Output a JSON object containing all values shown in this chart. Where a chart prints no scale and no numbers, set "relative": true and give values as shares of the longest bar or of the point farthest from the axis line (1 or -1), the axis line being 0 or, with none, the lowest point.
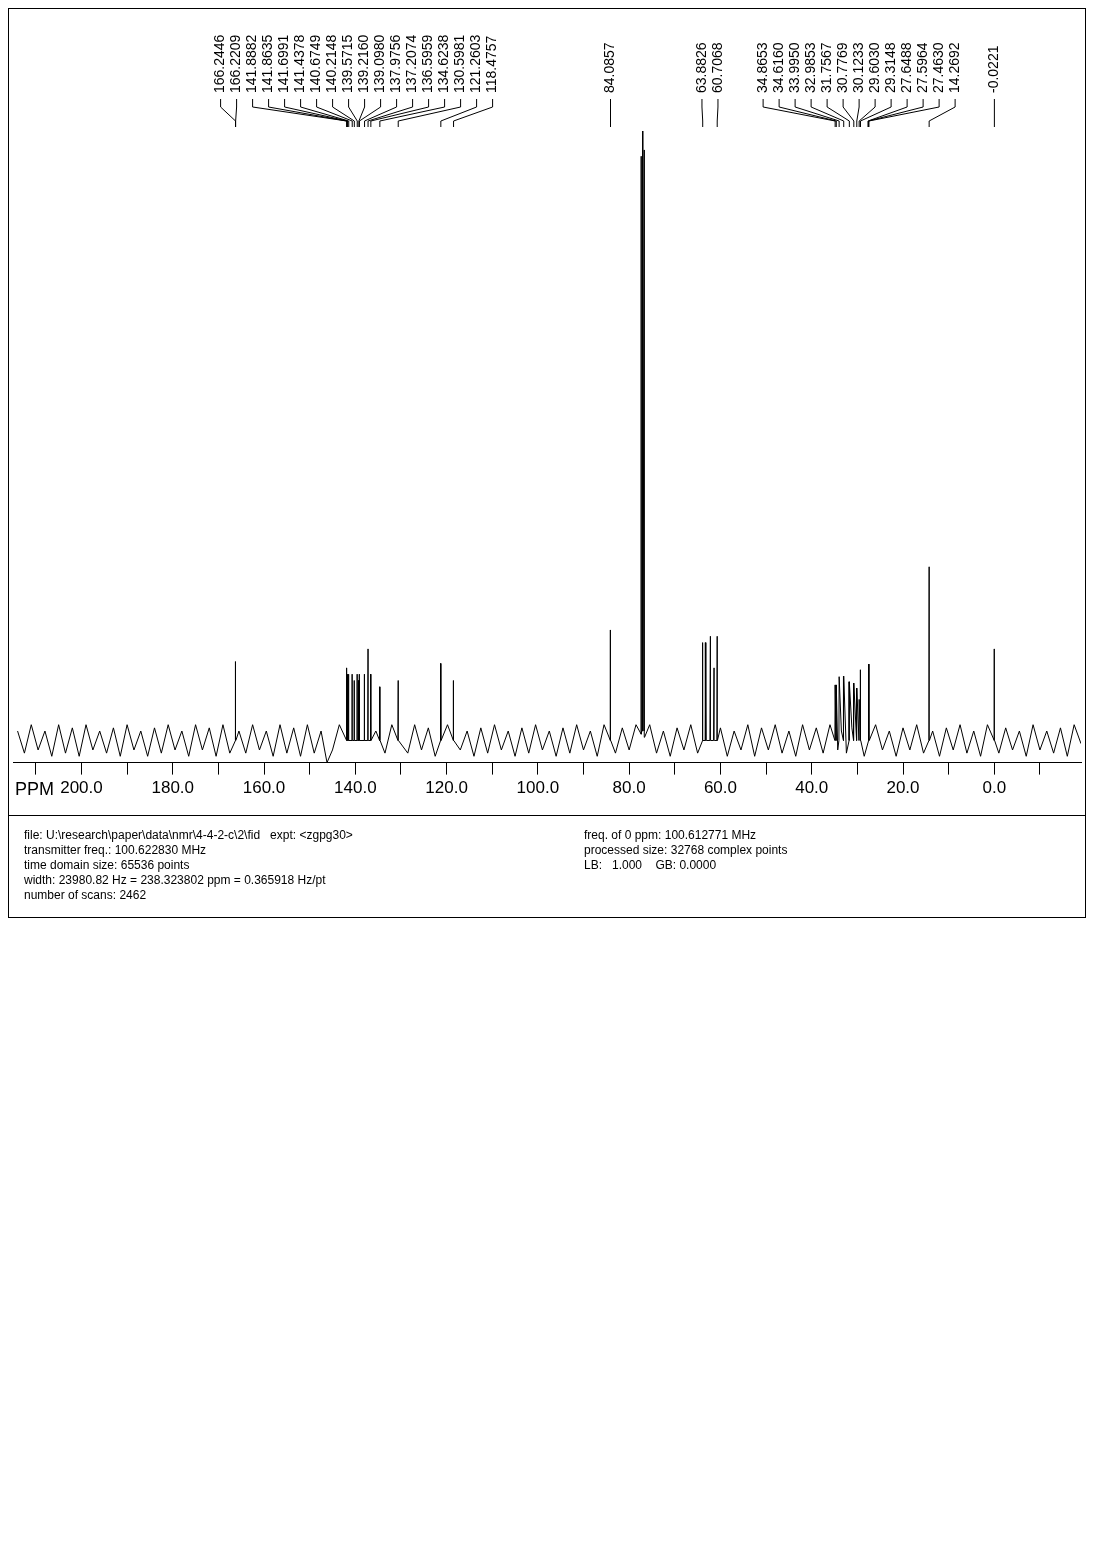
{
  "chart_data": {
    "type": "line",
    "relative": true,
    "color": "#000000",
    "xlabel": "PPM",
    "xlim": [
      215,
      -19
    ],
    "xticks": [
      {
        "value": -10,
        "label": null
      },
      {
        "value": 0,
        "label": "0.0"
      },
      {
        "value": 10,
        "label": null
      },
      {
        "value": 20,
        "label": "20.0"
      },
      {
        "value": 30,
        "label": null
      },
      {
        "value": 40,
        "label": "40.0"
      },
      {
        "value": 50,
        "label": null
      },
      {
        "value": 60,
        "label": "60.0"
      },
      {
        "value": 70,
        "label": null
      },
      {
        "value": 80,
        "label": "80.0"
      },
      {
        "value": 90,
        "label": null
      },
      {
        "value": 100,
        "label": "100.0"
      },
      {
        "value": 110,
        "label": null
      },
      {
        "value": 120,
        "label": "120.0"
      },
      {
        "value": 130,
        "label": null
      },
      {
        "value": 140,
        "label": "140.0"
      },
      {
        "value": 150,
        "label": null
      },
      {
        "value": 160,
        "label": "160.0"
      },
      {
        "value": 170,
        "label": null
      },
      {
        "value": 180,
        "label": "180.0"
      },
      {
        "value": 190,
        "label": null
      },
      {
        "value": 200,
        "label": "200.0"
      },
      {
        "value": 210,
        "label": null
      }
    ],
    "tick_labels": "x",
    "x": [
      -19,
      -17.5,
      -16,
      -14.5,
      -13,
      -11.5,
      -10,
      -8.5,
      -7,
      -5.5,
      -4,
      -2.5,
      -1,
      -0.07,
      -0.02,
      0.03,
      1.5,
      3,
      4.5,
      6,
      7.5,
      9,
      10.5,
      12,
      13.5,
      14.22,
      14.27,
      14.32,
      15.5,
      17,
      18.5,
      20,
      21.5,
      23,
      24.5,
      26,
      27.4,
      27.46,
      27.53,
      28.5,
      29.26,
      29.31,
      29.36,
      29.6,
      29.65,
      30.12,
      30.17,
      30.78,
      30.83,
      31.2,
      31.76,
      31.81,
      32.4,
      32.99,
      33.04,
      33.5,
      33.99,
      34.04,
      34.3,
      34.62,
      34.67,
      34.87,
      34.92,
      36,
      37.5,
      39,
      40.5,
      42,
      43.5,
      45,
      46.5,
      48,
      49.5,
      51,
      52.5,
      54,
      55.5,
      57,
      58.5,
      60,
      60.66,
      60.71,
      60.76,
      61.3,
      61.4,
      61.5,
      62.1,
      62.2,
      62.3,
      63.1,
      63.2,
      63.3,
      63.83,
      63.88,
      63.93,
      65,
      66.5,
      68,
      69.5,
      71,
      72.5,
      74,
      75.5,
      76.63,
      76.69,
      76.75,
      76.95,
      77.01,
      77.07,
      77.27,
      77.33,
      77.39,
      78.5,
      80,
      81.5,
      83,
      84.04,
      84.09,
      84.14,
      85.5,
      87,
      88.5,
      90,
      91.5,
      93,
      94.5,
      96,
      97.5,
      99,
      100.5,
      102,
      103.5,
      105,
      106.5,
      108,
      109.5,
      111,
      112.5,
      114,
      115.5,
      117,
      118.43,
      118.48,
      118.53,
      119.8,
      121.21,
      121.26,
      121.31,
      122.5,
      124,
      125.5,
      127,
      128.5,
      130.55,
      130.6,
      130.65,
      132,
      133.5,
      134.57,
      134.62,
      134.67,
      135.5,
      136.55,
      136.6,
      136.65,
      137.16,
      137.21,
      137.26,
      137.93,
      137.98,
      138.03,
      139.05,
      139.1,
      139.15,
      139.22,
      139.27,
      139.52,
      139.57,
      139.62,
      140.16,
      140.21,
      140.26,
      140.62,
      140.67,
      140.72,
      141.39,
      141.44,
      141.49,
      141.65,
      141.7,
      141.75,
      141.84,
      141.87,
      141.94,
      143.5,
      145,
      146.2,
      147.5,
      149,
      150.5,
      152,
      153.5,
      155,
      156.5,
      158,
      159.5,
      161,
      162.5,
      164,
      165.5,
      166.17,
      166.22,
      166.3,
      167.5,
      169,
      170.5,
      172,
      173.5,
      175,
      176.5,
      178,
      179.5,
      181,
      182.5,
      184,
      185.5,
      187,
      188.5,
      190,
      191.5,
      193,
      194.5,
      196,
      197.5,
      199,
      200.5,
      202,
      203.5,
      205,
      206.5,
      208,
      209.5,
      211,
      212.5,
      214
    ],
    "values": [
      0.03,
      0.06,
      0.01,
      0.055,
      0.015,
      0.05,
      0.02,
      0.06,
      0.01,
      0.05,
      0.02,
      0.055,
      0.015,
      0.035,
      0.18,
      0.035,
      0.06,
      0.01,
      0.05,
      0.015,
      0.06,
      0.02,
      0.055,
      0.01,
      0.05,
      0.035,
      0.31,
      0.035,
      0.015,
      0.06,
      0.02,
      0.055,
      0.01,
      0.05,
      0.02,
      0.06,
      0.035,
      0.156,
      0.035,
      0.01,
      0.035,
      0.147,
      0.035,
      0.1,
      0.035,
      0.118,
      0.035,
      0.126,
      0.035,
      0.055,
      0.128,
      0.035,
      0.015,
      0.137,
      0.035,
      0.05,
      0.136,
      0.035,
      0.02,
      0.123,
      0.035,
      0.123,
      0.035,
      0.06,
      0.015,
      0.055,
      0.02,
      0.06,
      0.01,
      0.05,
      0.015,
      0.06,
      0.02,
      0.055,
      0.01,
      0.06,
      0.02,
      0.05,
      0.01,
      0.055,
      0.035,
      0.2,
      0.035,
      0.035,
      0.15,
      0.035,
      0.035,
      0.2,
      0.035,
      0.035,
      0.19,
      0.035,
      0.035,
      0.19,
      0.035,
      0.015,
      0.06,
      0.02,
      0.055,
      0.01,
      0.05,
      0.015,
      0.06,
      0.04,
      0.97,
      0.05,
      0.05,
      1,
      0.05,
      0.05,
      0.96,
      0.045,
      0.06,
      0.02,
      0.055,
      0.015,
      0.035,
      0.21,
      0.035,
      0.06,
      0.01,
      0.05,
      0.02,
      0.06,
      0.015,
      0.055,
      0.01,
      0.05,
      0.02,
      0.06,
      0.015,
      0.055,
      0.01,
      0.05,
      0.02,
      0.06,
      0.015,
      0.055,
      0.01,
      0.05,
      0.02,
      0.035,
      0.13,
      0.035,
      0.06,
      0.035,
      0.157,
      0.035,
      0.01,
      0.055,
      0.02,
      0.06,
      0.015,
      0.035,
      0.13,
      0.035,
      0.06,
      0.015,
      0.035,
      0.12,
      0.035,
      0.05,
      0.035,
      0.14,
      0.035,
      0.035,
      0.18,
      0.035,
      0.035,
      0.14,
      0.035,
      0.035,
      0.14,
      0.035,
      0.13,
      0.035,
      0.035,
      0.14,
      0.035,
      0.035,
      0.13,
      0.035,
      0.035,
      0.14,
      0.035,
      0.035,
      0.14,
      0.035,
      0.035,
      0.14,
      0.035,
      0.035,
      0.15,
      0.035,
      0.06,
      0.02,
      0,
      0.05,
      0.015,
      0.06,
      0.01,
      0.055,
      0.015,
      0.06,
      0.01,
      0.05,
      0.02,
      0.06,
      0.015,
      0.05,
      0.035,
      0.16,
      0.035,
      0.015,
      0.06,
      0.01,
      0.055,
      0.02,
      0.06,
      0.01,
      0.05,
      0.02,
      0.06,
      0.015,
      0.055,
      0.01,
      0.05,
      0.02,
      0.06,
      0.01,
      0.055,
      0.015,
      0.05,
      0.02,
      0.06,
      0.01,
      0.055,
      0.015,
      0.06,
      0.01,
      0.05,
      0.02,
      0.06,
      0.015,
      0.05
    ],
    "annotations": [
      {
        "text": "-0.0221",
        "x": -0.0221
      },
      {
        "text": "14.2692",
        "x": 14.2692
      },
      {
        "text": "27.4630",
        "x": 27.463
      },
      {
        "text": "27.5964",
        "x": 27.5964
      },
      {
        "text": "27.6488",
        "x": 27.6488
      },
      {
        "text": "29.3148",
        "x": 29.3148
      },
      {
        "text": "29.6030",
        "x": 29.603
      },
      {
        "text": "30.1233",
        "x": 30.1233
      },
      {
        "text": "30.7769",
        "x": 30.7769
      },
      {
        "text": "31.7567",
        "x": 31.7567
      },
      {
        "text": "32.9853",
        "x": 32.9853
      },
      {
        "text": "33.9950",
        "x": 33.995
      },
      {
        "text": "34.6160",
        "x": 34.616
      },
      {
        "text": "34.8653",
        "x": 34.8653
      },
      {
        "text": "60.7068",
        "x": 60.7068
      },
      {
        "text": "63.8826",
        "x": 63.8826
      },
      {
        "text": "84.0857",
        "x": 84.0857
      },
      {
        "text": "118.4757",
        "x": 118.4757
      },
      {
        "text": "121.2603",
        "x": 121.2603
      },
      {
        "text": "130.5981",
        "x": 130.5981
      },
      {
        "text": "134.6238",
        "x": 134.6238
      },
      {
        "text": "136.5959",
        "x": 136.5959
      },
      {
        "text": "137.2074",
        "x": 137.2074
      },
      {
        "text": "137.9756",
        "x": 137.9756
      },
      {
        "text": "139.0980",
        "x": 139.098
      },
      {
        "text": "139.2160",
        "x": 139.216
      },
      {
        "text": "139.5715",
        "x": 139.5715
      },
      {
        "text": "140.2148",
        "x": 140.2148
      },
      {
        "text": "140.6749",
        "x": 140.6749
      },
      {
        "text": "141.4378",
        "x": 141.4378
      },
      {
        "text": "141.6991",
        "x": 141.6991
      },
      {
        "text": "141.8635",
        "x": 141.8635
      },
      {
        "text": "141.8882",
        "x": 141.8882
      },
      {
        "text": "166.2209",
        "x": 166.2209
      },
      {
        "text": "166.2446",
        "x": 166.2446
      },
      "file: U:\\research\\paper\\data\\nmr\\4-4-2-c\\2\\fid   expt: <zgpg30>",
      "transmitter freq.: 100.622830 MHz",
      "time domain size: 65536 points",
      "width: 23980.82 Hz = 238.323802 ppm = 0.365918 Hz/pt",
      "number of scans: 2462",
      "freq. of 0 ppm: 100.612771 MHz",
      "processed size: 32768 complex points",
      "LB:   1.000    GB: 0.0000"
    ]
  }
}
